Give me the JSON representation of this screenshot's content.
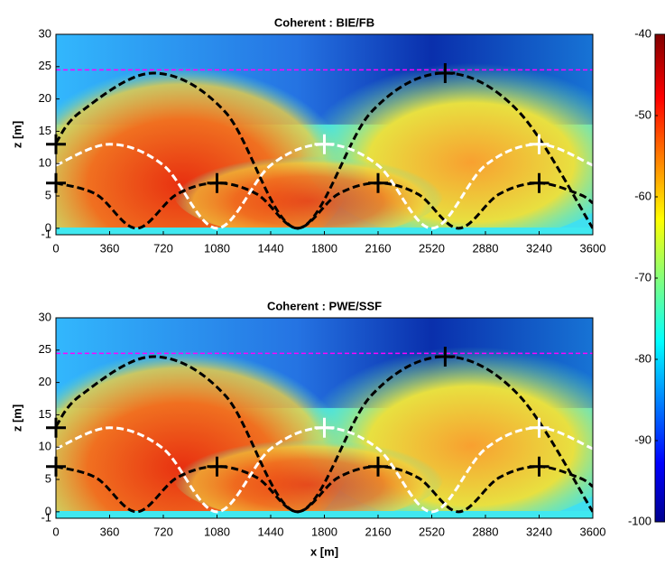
{
  "chart_data": [
    {
      "type": "heatmap",
      "title": "Coherent : BIE/FB",
      "ylabel": "z [m]",
      "xlim": [
        0,
        3600
      ],
      "ylim": [
        -1,
        30
      ],
      "xticks": [
        0,
        360,
        720,
        1080,
        1440,
        1800,
        2160,
        2520,
        2880,
        3240,
        3600
      ],
      "yticks": [
        -1,
        0,
        5,
        10,
        15,
        20,
        25,
        30
      ],
      "series": [
        {
          "type": "line",
          "color": "#ff00ff",
          "dash": true,
          "x": [
            0,
            3600
          ],
          "values": [
            24.5,
            24.5
          ]
        },
        {
          "type": "line",
          "color": "#000000",
          "dash": true,
          "x": [
            0,
            165,
            650,
            1135,
            1620,
            2115,
            2610,
            3105,
            3600
          ],
          "values": [
            13.2,
            18,
            24,
            18,
            0,
            18,
            24,
            18,
            0
          ]
        },
        {
          "type": "line",
          "color": "#000000",
          "dash": true,
          "x": [
            0,
            270,
            540,
            810,
            1080,
            1350,
            1620,
            1890,
            2160,
            2430,
            2700,
            2970,
            3240,
            3510,
            3600
          ],
          "values": [
            7,
            5.25,
            0,
            5.25,
            7,
            5.25,
            0,
            5.25,
            7,
            5.25,
            0,
            5.25,
            7,
            5.25,
            3.9
          ]
        },
        {
          "type": "line",
          "color": "#ffffff",
          "dash": true,
          "x": [
            0,
            360,
            720,
            1080,
            1440,
            1800,
            2160,
            2520,
            2880,
            3240,
            3600
          ],
          "values": [
            9.75,
            13,
            9.75,
            0,
            9.75,
            13,
            9.75,
            0,
            9.75,
            13,
            9.75
          ]
        },
        {
          "type": "scatter",
          "color": "#000000",
          "x": [
            0,
            0,
            1080,
            2160,
            2610,
            3240
          ],
          "values": [
            13,
            7,
            7,
            7,
            24,
            7
          ]
        },
        {
          "type": "scatter",
          "color": "#ffffff",
          "x": [
            1800,
            3240
          ],
          "values": [
            13,
            13
          ]
        }
      ]
    },
    {
      "type": "heatmap",
      "title": "Coherent : PWE/SSF",
      "xlabel": "x [m]",
      "ylabel": "z [m]",
      "xlim": [
        0,
        3600
      ],
      "ylim": [
        -1,
        30
      ],
      "xticks": [
        0,
        360,
        720,
        1080,
        1440,
        1800,
        2160,
        2520,
        2880,
        3240,
        3600
      ],
      "yticks": [
        -1,
        0,
        5,
        10,
        15,
        20,
        25,
        30
      ],
      "series": [
        {
          "type": "line",
          "color": "#ff00ff",
          "dash": true,
          "x": [
            0,
            3600
          ],
          "values": [
            24.5,
            24.5
          ]
        },
        {
          "type": "line",
          "color": "#000000",
          "dash": true,
          "x": [
            0,
            165,
            650,
            1135,
            1620,
            2115,
            2610,
            3105,
            3600
          ],
          "values": [
            13.2,
            18,
            24,
            18,
            0,
            18,
            24,
            18,
            0
          ]
        },
        {
          "type": "line",
          "color": "#000000",
          "dash": true,
          "x": [
            0,
            270,
            540,
            810,
            1080,
            1350,
            1620,
            1890,
            2160,
            2430,
            2700,
            2970,
            3240,
            3510,
            3600
          ],
          "values": [
            7,
            5.25,
            0,
            5.25,
            7,
            5.25,
            0,
            5.25,
            7,
            5.25,
            0,
            5.25,
            7,
            5.25,
            3.9
          ]
        },
        {
          "type": "line",
          "color": "#ffffff",
          "dash": true,
          "x": [
            0,
            360,
            720,
            1080,
            1440,
            1800,
            2160,
            2520,
            2880,
            3240,
            3600
          ],
          "values": [
            9.75,
            13,
            9.75,
            0,
            9.75,
            13,
            9.75,
            0,
            9.75,
            13,
            9.75
          ]
        },
        {
          "type": "scatter",
          "color": "#000000",
          "x": [
            0,
            0,
            1080,
            2160,
            2610,
            3240
          ],
          "values": [
            13,
            7,
            7,
            7,
            24,
            7
          ]
        },
        {
          "type": "scatter",
          "color": "#ffffff",
          "x": [
            1800,
            3240
          ],
          "values": [
            13,
            13
          ]
        }
      ]
    },
    {
      "type": "colorbar",
      "clim": [
        -100,
        -40
      ],
      "cticks": [
        -100,
        -90,
        -80,
        -70,
        -60,
        -50,
        -40
      ]
    }
  ]
}
